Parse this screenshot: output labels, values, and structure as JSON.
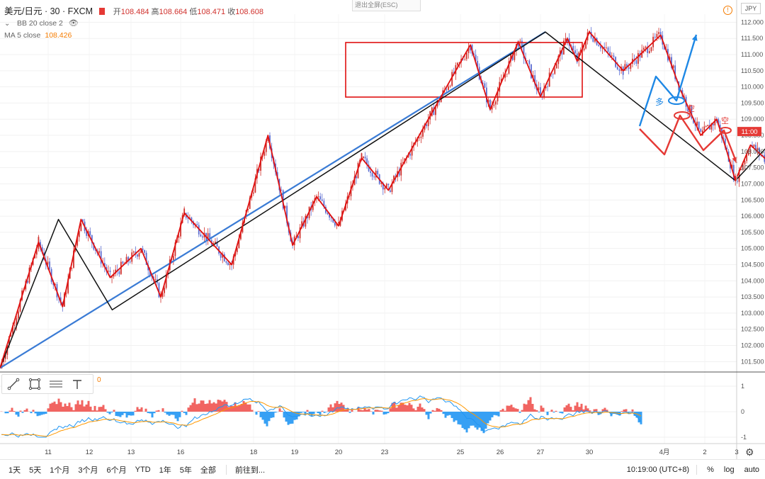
{
  "header": {
    "symbol": "美元/日元 · 30 · FXCM",
    "open_label": "开",
    "open": "108.484",
    "high_label": "高",
    "high": "108.664",
    "low_label": "低",
    "low": "108.471",
    "close_label": "收",
    "close": "108.608",
    "exit_fullscreen": "退出全屏(ESC)",
    "currency": "JPY"
  },
  "indicators": {
    "bb": {
      "label": "BB 20 close 2"
    },
    "ma": {
      "label": "MA 5 close",
      "value": "108.426"
    },
    "osc_value": "0"
  },
  "price_axis": {
    "ticks": [
      "112.000",
      "111.500",
      "111.000",
      "110.500",
      "110.000",
      "109.500",
      "109.000",
      "108.500",
      "108.000",
      "107.500",
      "107.000",
      "106.500",
      "106.000",
      "105.500",
      "105.000",
      "104.500",
      "104.000",
      "103.500",
      "103.000",
      "102.500",
      "102.000",
      "101.500"
    ],
    "current_label": "11:00",
    "current_value": 108.608
  },
  "osc_axis": {
    "ticks": [
      "1",
      "0",
      "-1"
    ]
  },
  "time_axis": {
    "ticks": [
      "11",
      "12",
      "13",
      "16",
      "18",
      "19",
      "20",
      "23",
      "25",
      "26",
      "27",
      "30",
      "4月",
      "2",
      "3"
    ]
  },
  "annotations": {
    "long": "多",
    "short": "空"
  },
  "colors": {
    "candle_up": "#d0312d",
    "candle_down": "#5b6bd0",
    "wave_red": "#e01010",
    "wave_black": "#111111",
    "trend_blue": "#3a7bd5",
    "arrow_blue": "#1e88e5",
    "arrow_red": "#e53935"
  },
  "chart_data": {
    "type": "line",
    "title": "美元/日元 · 30 · FXCM",
    "xlabel": "",
    "ylabel": "",
    "ylim": [
      101.2,
      112.25
    ],
    "x_ticks": [
      "11",
      "12",
      "13",
      "16",
      "18",
      "19",
      "20",
      "23",
      "25",
      "26",
      "27",
      "30",
      "4月",
      "2",
      "3"
    ],
    "series": [
      {
        "name": "zigzag-red",
        "x": [
          0,
          0.8,
          1.35,
          1.8,
          2.5,
          3.2,
          3.6,
          4.05,
          4.7,
          5.35,
          5.95,
          6.5,
          7.0,
          7.5,
          8.05,
          8.6,
          9.25,
          9.75,
          10.45,
          11.0,
          11.55,
          11.75,
          12.0,
          12.45,
          12.95,
          13.4,
          13.9,
          14.35,
          14.65,
          14.9,
          15.3,
          15.75,
          16.2
        ],
        "y": [
          101.3,
          105.2,
          103.2,
          105.9,
          104.1,
          105.0,
          103.5,
          106.1,
          104.5,
          108.5,
          105.1,
          106.6,
          105.7,
          107.8,
          106.8,
          109.1,
          111.3,
          109.3,
          111.4,
          109.7,
          111.5,
          110.8,
          111.7,
          110.5,
          111.6,
          109.9,
          108.5,
          109.0,
          108.0,
          107.1,
          108.2,
          107.7,
          108.8
        ]
      },
      {
        "name": "zigzag-black",
        "x": [
          0,
          1.25,
          2.55,
          11.1,
          14.9,
          16.2
        ],
        "y": [
          101.3,
          105.9,
          103.1,
          111.7,
          107.1,
          108.75
        ]
      },
      {
        "name": "trendline-blue",
        "x": [
          0,
          11.1
        ],
        "y": [
          101.3,
          111.7
        ]
      }
    ]
  }
}
